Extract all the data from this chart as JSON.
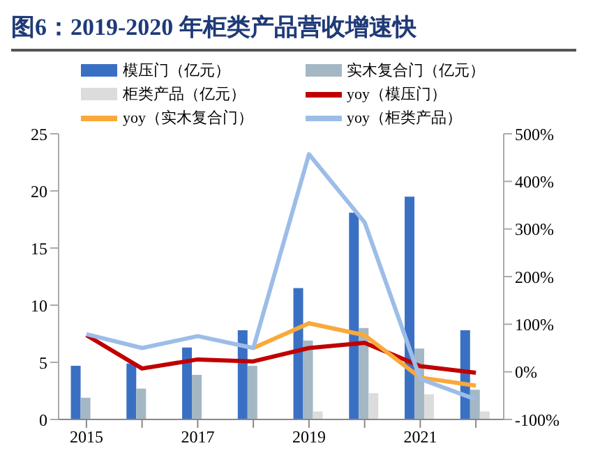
{
  "chart_data": {
    "type": "bar",
    "title": "图6：2019-2020 年柜类产品营收增速快",
    "categories": [
      "2015",
      null,
      "2017",
      null,
      "2019",
      null,
      "2021",
      null
    ],
    "series": [
      {
        "name": "模压门（亿元）",
        "color": "#3a70c4",
        "values": [
          4.7,
          4.9,
          6.3,
          7.8,
          11.5,
          18.1,
          19.5,
          7.8
        ]
      },
      {
        "name": "实木复合门（亿元）",
        "color": "#a3b8c4",
        "values": [
          1.9,
          2.7,
          3.9,
          4.7,
          6.9,
          8.0,
          6.2,
          2.6
        ]
      },
      {
        "name": "柜类产品（亿元）",
        "color": "#dcdcdc",
        "values": [
          null,
          null,
          null,
          null,
          0.7,
          2.3,
          2.2,
          0.7
        ]
      },
      {
        "name": "yoy（模压门）",
        "type": "line",
        "axis": "y2",
        "color": "#c00000",
        "values": [
          77,
          7,
          26,
          22,
          50,
          61,
          12,
          -2
        ]
      },
      {
        "name": "yoy（实木复合门）",
        "type": "line",
        "axis": "y2",
        "color": "#f9a93a",
        "values": [
          null,
          null,
          null,
          50,
          102,
          77,
          -12,
          -29
        ]
      },
      {
        "name": "yoy（柜类产品）",
        "type": "line",
        "axis": "y2",
        "color": "#9dbde8",
        "values": [
          79,
          50,
          75,
          50,
          457,
          314,
          -15,
          -58
        ]
      }
    ],
    "ylim": [
      0,
      25
    ],
    "yticks": [
      0,
      5,
      10,
      15,
      20,
      25
    ],
    "y2lim": [
      -100,
      500
    ],
    "y2ticks": [
      {
        "value": -100,
        "label": "-100%"
      },
      {
        "value": 0,
        "label": "0%"
      },
      {
        "value": 100,
        "label": "100%"
      },
      {
        "value": 200,
        "label": "200%"
      },
      {
        "value": 300,
        "label": "300%"
      },
      {
        "value": 400,
        "label": "400%"
      },
      {
        "value": 500,
        "label": "500%"
      }
    ],
    "legend": "top",
    "grid": false,
    "marker": "none"
  }
}
